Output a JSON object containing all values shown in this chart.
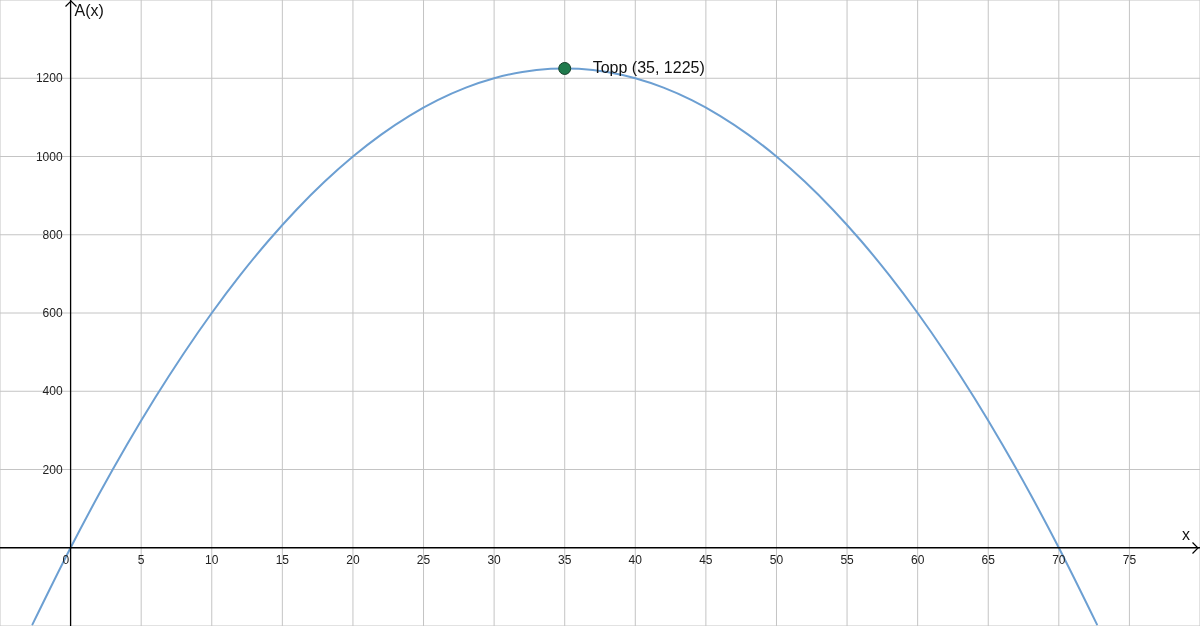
{
  "chart_data": {
    "type": "line",
    "xlabel": "x",
    "ylabel": "A(x)",
    "xlim": [
      -5,
      80
    ],
    "ylim": [
      -200,
      1400
    ],
    "xticks": [
      0,
      5,
      10,
      15,
      20,
      25,
      30,
      35,
      40,
      45,
      50,
      55,
      60,
      65,
      70,
      75
    ],
    "yticks": [
      200,
      400,
      600,
      800,
      1000,
      1200
    ],
    "grid": true,
    "series": [
      {
        "color": "#6c9fd2",
        "line_style": "solid",
        "x": [
          -2.7,
          0,
          2,
          4,
          6,
          8,
          10,
          12,
          14,
          16,
          18,
          20,
          22,
          24,
          26,
          28,
          30,
          32,
          34,
          35,
          36,
          38,
          40,
          42,
          44,
          46,
          48,
          50,
          52,
          54,
          56,
          58,
          60,
          62,
          64,
          66,
          68,
          70,
          72.7
        ],
        "values": [
          -196,
          0,
          136,
          264,
          384,
          496,
          600,
          696,
          784,
          864,
          936,
          1000,
          1056,
          1104,
          1144,
          1176,
          1200,
          1216,
          1224,
          1225,
          1224,
          1216,
          1200,
          1176,
          1144,
          1104,
          1056,
          1000,
          936,
          864,
          784,
          696,
          600,
          496,
          384,
          264,
          136,
          0,
          -196
        ]
      },
      {
        "type": "scatter",
        "color": "#1f7a4c",
        "marker": "circle",
        "x": [
          35
        ],
        "values": [
          1225
        ]
      }
    ],
    "annotations": [
      {
        "text": "Topp (35, 1225)",
        "x": 35,
        "y": 1225
      }
    ]
  }
}
